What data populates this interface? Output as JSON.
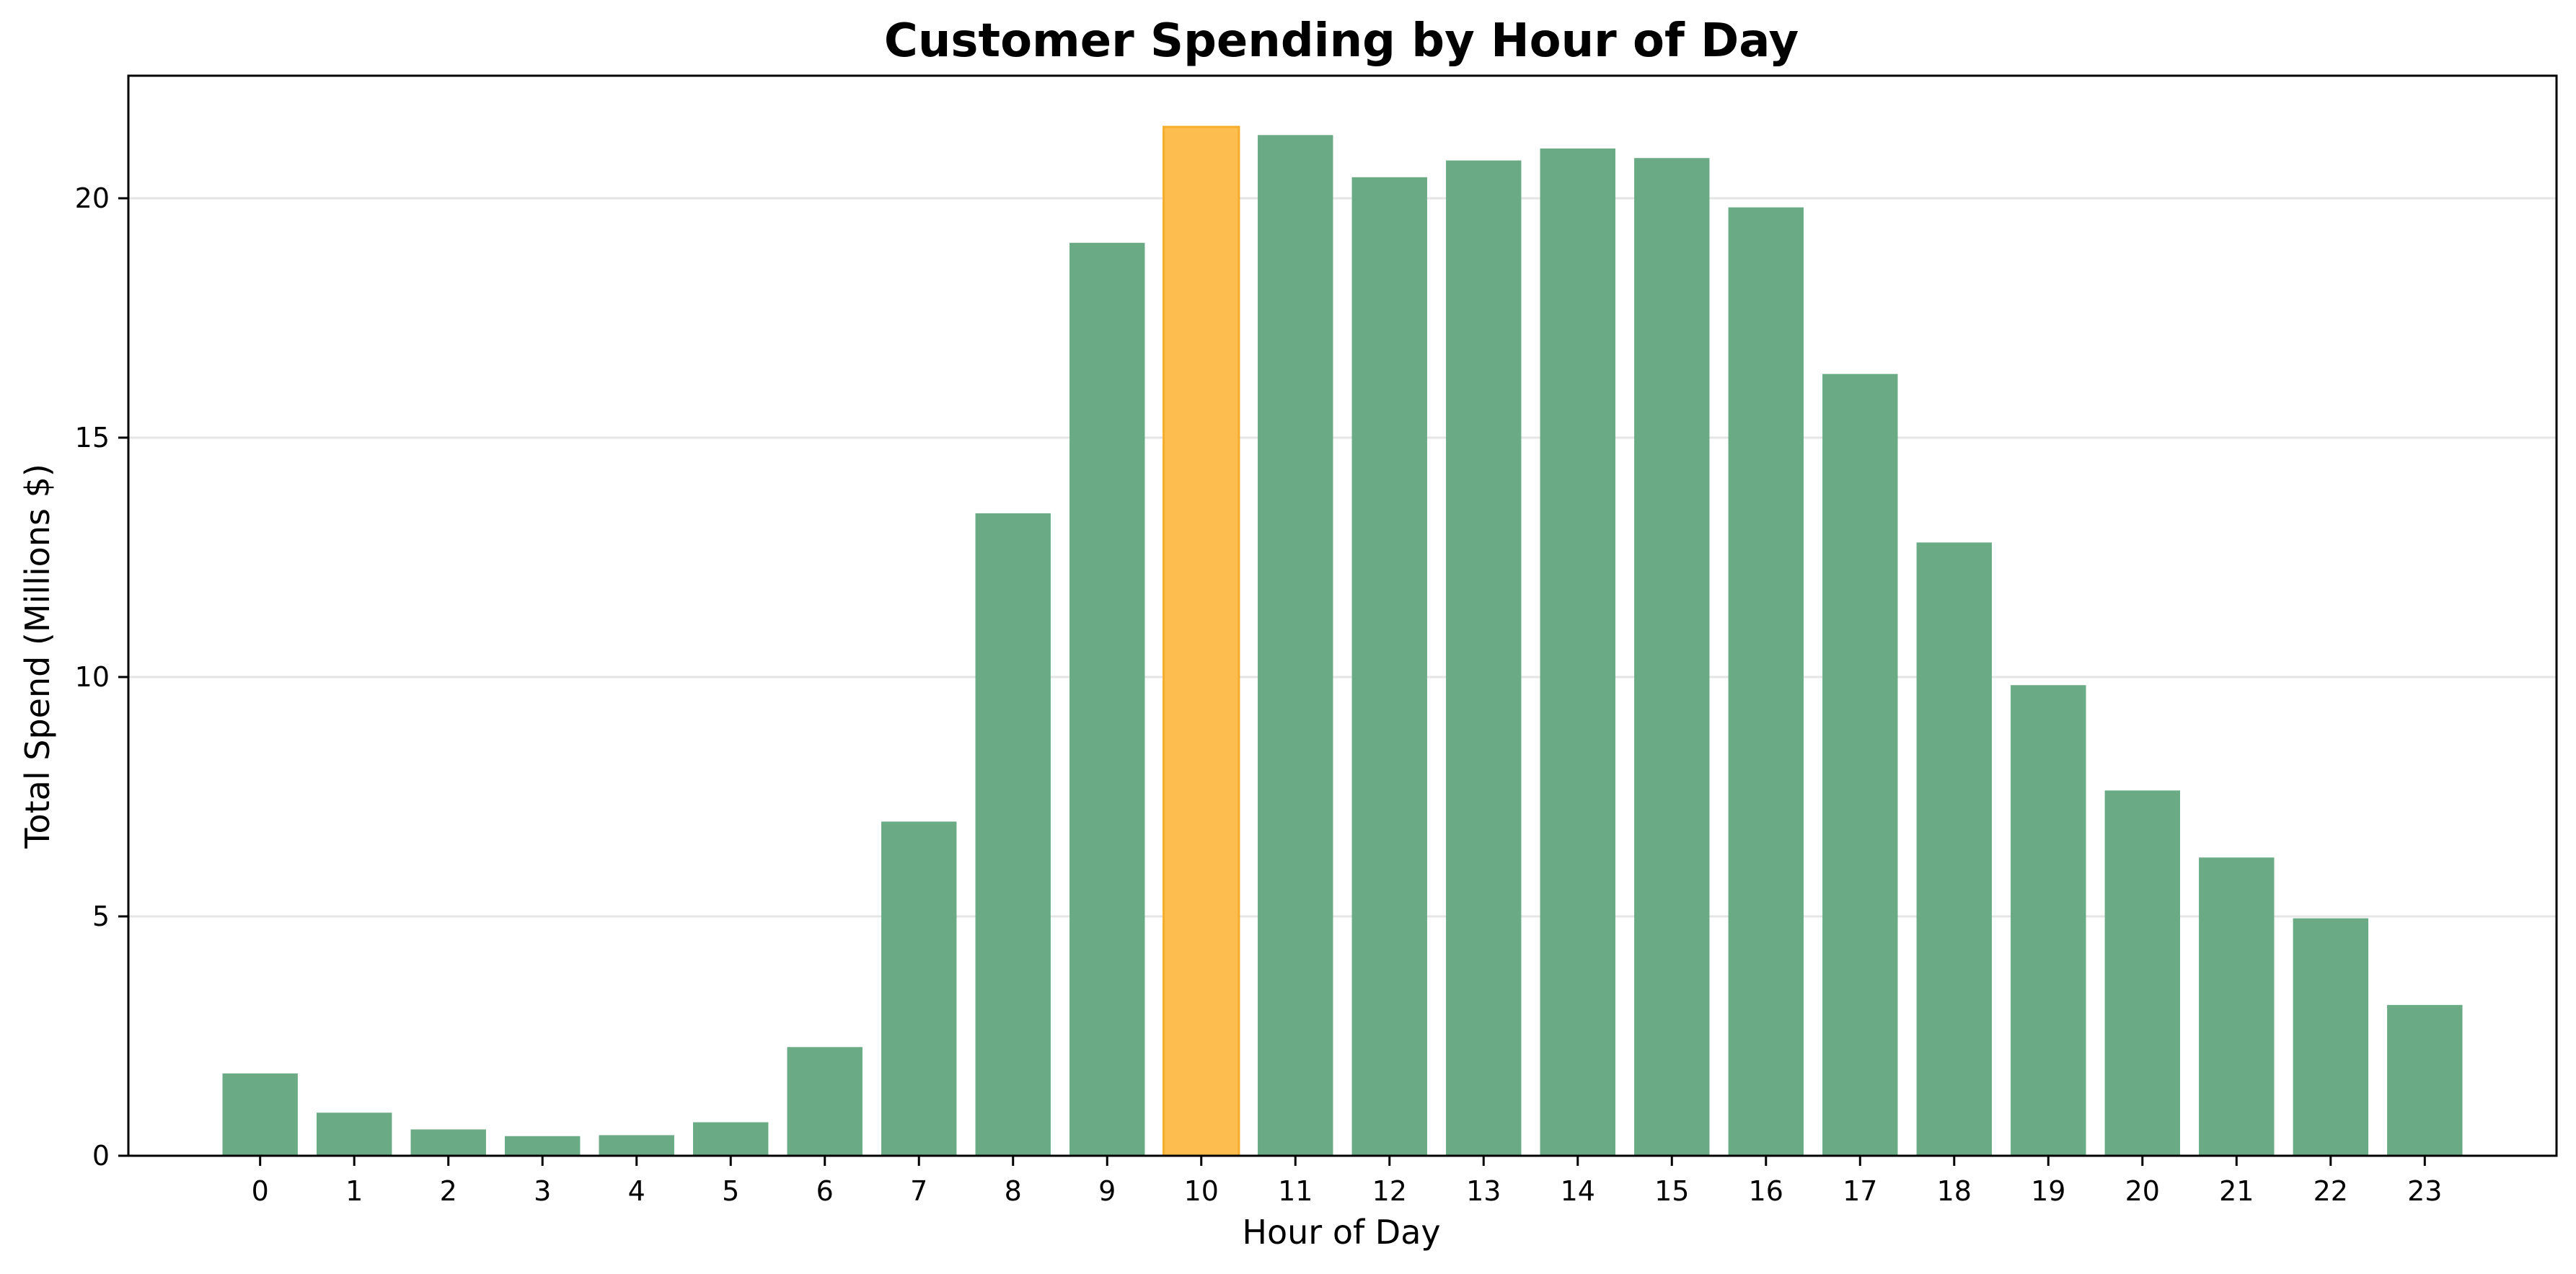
{
  "chart_data": {
    "type": "bar",
    "title": "Customer Spending by Hour of Day",
    "xlabel": "Hour of Day",
    "ylabel": "Total Spend (Millions $)",
    "categories": [
      "0",
      "1",
      "2",
      "3",
      "4",
      "5",
      "6",
      "7",
      "8",
      "9",
      "10",
      "11",
      "12",
      "13",
      "14",
      "15",
      "16",
      "17",
      "18",
      "19",
      "20",
      "21",
      "22",
      "23"
    ],
    "values": [
      1.72,
      0.9,
      0.55,
      0.41,
      0.43,
      0.7,
      2.27,
      6.98,
      13.42,
      19.07,
      21.49,
      21.32,
      20.44,
      20.79,
      21.04,
      20.84,
      19.81,
      16.33,
      12.81,
      9.83,
      7.63,
      6.23,
      4.96,
      3.15
    ],
    "highlight_category": "10",
    "ylim": [
      0,
      22.56
    ],
    "yticks": [
      0,
      5,
      10,
      15,
      20
    ],
    "grid": "horizontal",
    "colors": {
      "bar": "#6aab86",
      "highlight": "#fdbe4f",
      "highlight_edge": "#f5ad2c"
    }
  }
}
